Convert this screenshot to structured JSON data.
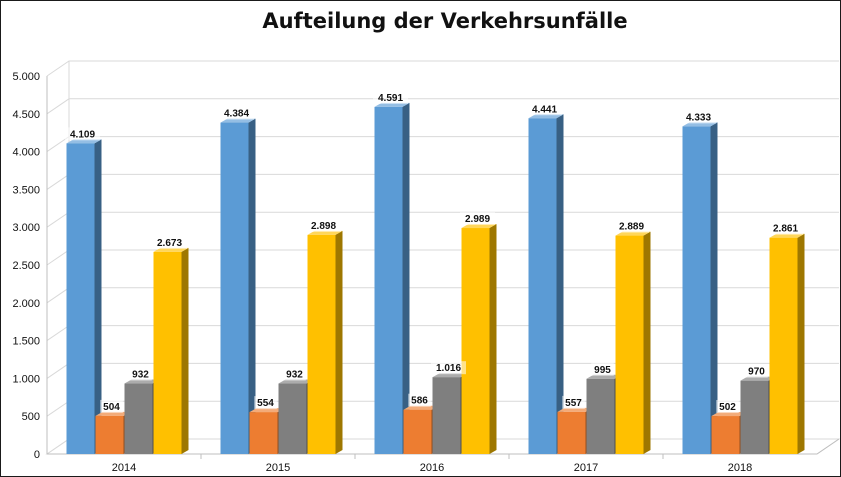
{
  "chart_data": {
    "type": "bar",
    "title": "Aufteilung der Verkehrsunfälle",
    "xlabel": "",
    "ylabel": "",
    "categories": [
      "2014",
      "2015",
      "2016",
      "2017",
      "2018"
    ],
    "series": [
      {
        "values": [
          4109,
          4384,
          4591,
          4441,
          4333
        ],
        "labels": [
          "4.109",
          "4.384",
          "4.591",
          "4.441",
          "4.333"
        ],
        "color": "#5b9bd5"
      },
      {
        "values": [
          504,
          554,
          586,
          557,
          502
        ],
        "labels": [
          "504",
          "554",
          "586",
          "557",
          "502"
        ],
        "color": "#ed7d31"
      },
      {
        "values": [
          932,
          932,
          1016,
          995,
          970
        ],
        "labels": [
          "932",
          "932",
          "1.016",
          "995",
          "970"
        ],
        "color": "#7f7f7f"
      },
      {
        "values": [
          2673,
          2898,
          2989,
          2889,
          2861
        ],
        "labels": [
          "2.673",
          "2.898",
          "2.989",
          "2.889",
          "2.861"
        ],
        "color": "#ffc000"
      }
    ],
    "ylim": [
      0,
      5000
    ],
    "yticks": [
      0,
      500,
      1000,
      1500,
      2000,
      2500,
      3000,
      3500,
      4000,
      4500,
      5000
    ],
    "ytick_labels": [
      "0",
      "500",
      "1.000",
      "1.500",
      "2.000",
      "2.500",
      "3.000",
      "3.500",
      "4.000",
      "4.500",
      "5.000"
    ],
    "grid": true,
    "legend": "none",
    "style": "3d-clustered-column"
  }
}
